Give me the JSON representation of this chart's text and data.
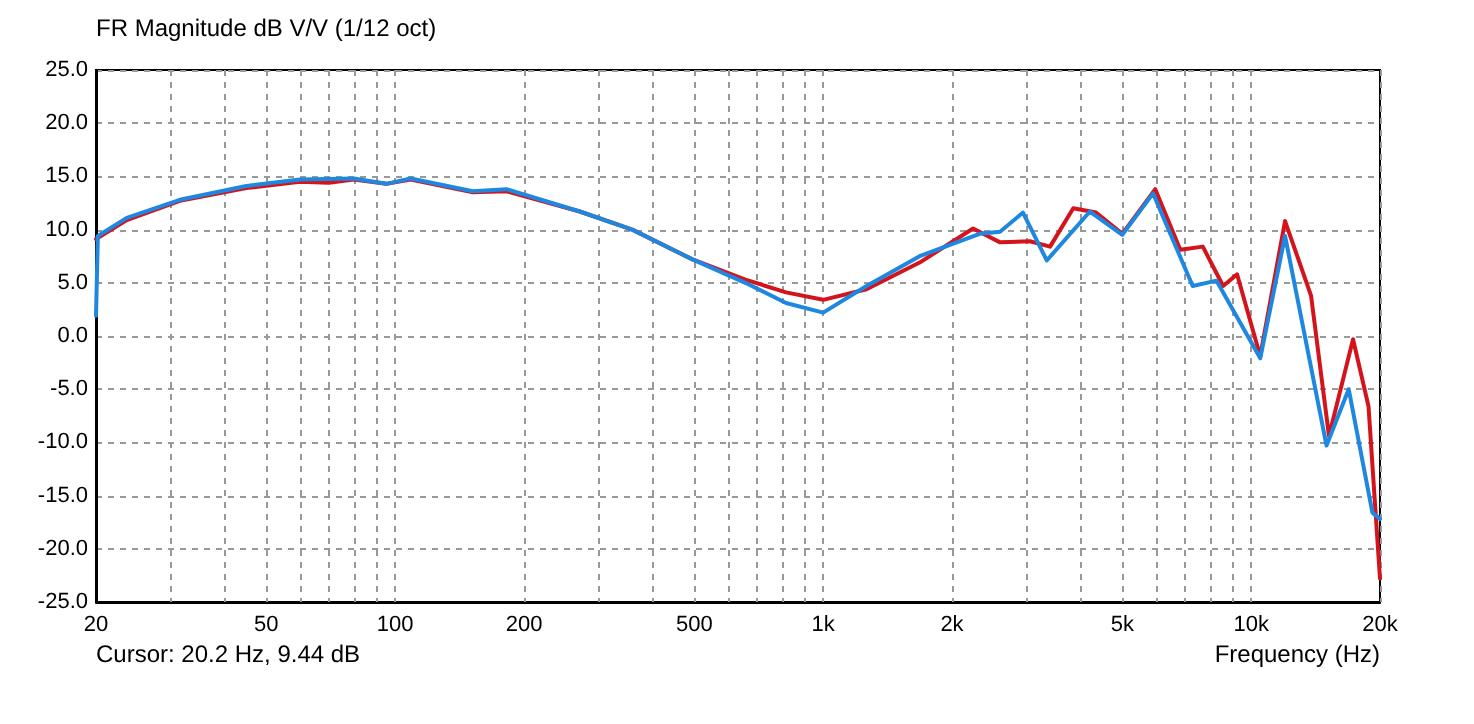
{
  "chart_data": {
    "type": "line",
    "title": "FR Magnitude dB V/V (1/12 oct)",
    "xlabel": "Frequency (Hz)",
    "annotations": [
      "Cursor: 20.2 Hz, 9.44 dB"
    ],
    "log": "x",
    "grid": true,
    "marker": "none",
    "line_style": "solid",
    "xlim": [
      20,
      20000
    ],
    "xticks": [
      20,
      {
        "value": 30,
        "label": null
      },
      {
        "value": 40,
        "label": null
      },
      50,
      {
        "value": 60,
        "label": null
      },
      {
        "value": 70,
        "label": null
      },
      {
        "value": 80,
        "label": null
      },
      {
        "value": 90,
        "label": null
      },
      100,
      200,
      {
        "value": 300,
        "label": null
      },
      {
        "value": 400,
        "label": null
      },
      500,
      {
        "value": 600,
        "label": null
      },
      {
        "value": 700,
        "label": null
      },
      {
        "value": 800,
        "label": null
      },
      {
        "value": 900,
        "label": null
      },
      {
        "value": 1000,
        "label": "1k"
      },
      {
        "value": 2000,
        "label": "2k"
      },
      {
        "value": 3000,
        "label": null
      },
      {
        "value": 4000,
        "label": null
      },
      {
        "value": 5000,
        "label": "5k"
      },
      {
        "value": 6000,
        "label": null
      },
      {
        "value": 7000,
        "label": null
      },
      {
        "value": 8000,
        "label": null
      },
      {
        "value": 9000,
        "label": null
      },
      {
        "value": 10000,
        "label": "10k"
      },
      {
        "value": 20000,
        "label": "20k"
      }
    ],
    "ylim": [
      -25,
      25
    ],
    "yticks": [
      {
        "value": -25,
        "label": "-25.0"
      },
      {
        "value": -20,
        "label": "-20.0"
      },
      {
        "value": -15,
        "label": "-15.0"
      },
      {
        "value": -10,
        "label": "-10.0"
      },
      {
        "value": -5,
        "label": "-5.0"
      },
      {
        "value": 0,
        "label": "0.0"
      },
      {
        "value": 5,
        "label": "5.0"
      },
      {
        "value": 10,
        "label": "10.0"
      },
      {
        "value": 15,
        "label": "15.0"
      },
      {
        "value": 20,
        "label": "20.0"
      },
      {
        "value": 25,
        "label": "25.0"
      }
    ],
    "series": [
      {
        "color": "#d4141c",
        "x": [
          20,
          23.6,
          31.4,
          44.9,
          59.9,
          70,
          80,
          95.4,
          108.7,
          152,
          182,
          270,
          358,
          495,
          658,
          819,
          1000,
          1263,
          1680,
          2240,
          2590,
          3040,
          3390,
          3840,
          4340,
          5000,
          5970,
          6830,
          7710,
          8600,
          9270,
          10500,
          12000,
          13800,
          15200,
          17300,
          18800,
          20000
        ],
        "values": [
          9.1,
          10.9,
          12.7,
          13.9,
          14.5,
          14.4,
          14.7,
          14.3,
          14.7,
          13.5,
          13.6,
          11.7,
          10,
          7.2,
          5.3,
          4.1,
          3.4,
          4.4,
          6.9,
          10.1,
          8.8,
          8.9,
          8.4,
          12,
          11.6,
          9.6,
          13.8,
          8.1,
          8.4,
          4.7,
          5.8,
          -1.9,
          10.8,
          3.8,
          -9.4,
          -0.3,
          -6.6,
          -22.8
        ]
      },
      {
        "color": "#1e88e0",
        "x": [
          20,
          20.2,
          23.6,
          31.4,
          44.9,
          59.9,
          80,
          95.4,
          108.7,
          152,
          182,
          270,
          358,
          495,
          658,
          819,
          1000,
          1263,
          1680,
          2320,
          2590,
          2930,
          3330,
          4200,
          5000,
          5900,
          7300,
          8300,
          10500,
          12000,
          15000,
          16900,
          19200,
          20000
        ],
        "values": [
          1.9,
          9.4,
          11.1,
          12.8,
          14.1,
          14.7,
          14.8,
          14.3,
          14.8,
          13.6,
          13.8,
          11.7,
          10,
          7.2,
          5,
          3.1,
          2.2,
          4.7,
          7.5,
          9.6,
          9.8,
          11.6,
          7.1,
          11.7,
          9.5,
          13.4,
          4.7,
          5.2,
          -2.1,
          9.4,
          -10.3,
          -5,
          -16.6,
          -17.2
        ]
      }
    ]
  }
}
